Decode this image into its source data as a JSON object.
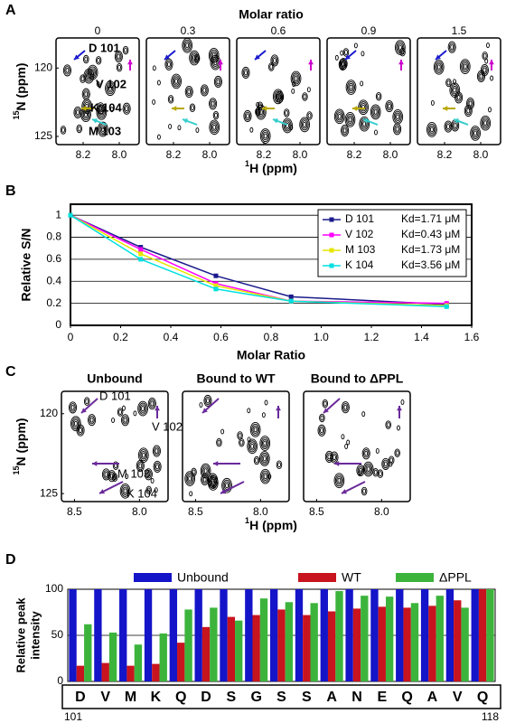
{
  "chart_data": [
    {
      "type": "spectra",
      "panel": "A",
      "title": "Molar ratio",
      "ratios": [
        0,
        0.3,
        0.6,
        0.9,
        1.5
      ],
      "xlabel_sup": "1",
      "xlabel": "H (ppm)",
      "ylabel_sup": "15",
      "ylabel": "N (ppm)",
      "xlim": [
        8.35,
        7.89
      ],
      "ylim": [
        117.8,
        125.6
      ],
      "xticks": [
        8.2,
        {
          "value": 8,
          "label": "8.0"
        }
      ],
      "yticks": [
        120,
        125
      ],
      "residues": [
        {
          "name": "D 101",
          "color": "#1a1acd"
        },
        {
          "name": "V 102",
          "color": "#cc00cc"
        },
        {
          "name": "K 104",
          "color": "#b8a800"
        },
        {
          "name": "M 103",
          "color": "#33cccc"
        }
      ]
    },
    {
      "type": "line",
      "panel": "B",
      "xlabel": "Molar Ratio",
      "ylabel": "Relative S/N",
      "x": [
        0,
        0.28,
        0.58,
        0.88,
        1.5
      ],
      "xlim": [
        0,
        1.6
      ],
      "xticks": [
        0,
        0.2,
        0.4,
        0.6,
        0.8,
        {
          "value": 1,
          "label": "1.0"
        },
        1.2,
        1.4,
        1.6
      ],
      "ylim": [
        0,
        1.1
      ],
      "yticks": [
        0,
        0.2,
        0.4,
        0.6,
        0.8,
        1
      ],
      "grid": true,
      "legend": "upper right",
      "series": [
        {
          "name": "D 101",
          "label": "Kd=1.71 μM",
          "color": "#1a1a8c",
          "values": [
            1.0,
            0.71,
            0.45,
            0.26,
            0.19
          ]
        },
        {
          "name": "V 102",
          "label": "Kd=0.43 μM",
          "color": "#ff00ff",
          "values": [
            1.0,
            0.69,
            0.38,
            0.22,
            0.2
          ]
        },
        {
          "name": "M 103",
          "label": "Kd=1.73 μM",
          "color": "#e6e600",
          "values": [
            1.0,
            0.65,
            0.36,
            0.22,
            0.18
          ]
        },
        {
          "name": "K 104",
          "label": "Kd=3.56 μM",
          "color": "#00e0e0",
          "values": [
            1.0,
            0.6,
            0.33,
            0.22,
            0.17
          ]
        }
      ]
    },
    {
      "type": "spectra",
      "panel": "C",
      "titles": [
        {
          "text": "Unbound",
          "color": "#1a1acd"
        },
        {
          "text": "Bound to WT",
          "color": "#e02020"
        },
        {
          "text": "Bound to ΔPPL",
          "color": "#33b033"
        }
      ],
      "xlabel_sup": "1",
      "xlabel": "H (ppm)",
      "ylabel_sup": "15",
      "ylabel": "N (ppm)",
      "xlim": [
        8.6,
        7.78
      ],
      "ylim": [
        118.6,
        125.5
      ],
      "xticks": [
        8.5,
        {
          "value": 8,
          "label": "8.0"
        }
      ],
      "yticks": [
        120,
        125
      ],
      "residues": [
        {
          "name": "D 101",
          "color": "#6a2a9a"
        },
        {
          "name": "V 102",
          "color": "#6a2a9a"
        },
        {
          "name": "M 103",
          "color": "#6a2a9a"
        },
        {
          "name": "K 104",
          "color": "#6a2a9a"
        }
      ]
    },
    {
      "type": "bar",
      "panel": "D",
      "ylabel": [
        "Relative peak",
        "intensity"
      ],
      "categories": [
        "D",
        "V",
        "M",
        "K",
        "Q",
        "D",
        "S",
        "G",
        "S",
        "S",
        "A",
        "N",
        "E",
        "Q",
        "A",
        "V",
        "Q"
      ],
      "highlighted": [
        0,
        1,
        2,
        3
      ],
      "highlight_color": "#6a2a9a",
      "first_residue": 101,
      "last_residue": 118,
      "ylim": [
        0,
        100
      ],
      "yticks": [
        0,
        50,
        100
      ],
      "grid": true,
      "series": [
        {
          "name": "Unbound",
          "color": "#1414c8",
          "values": [
            100,
            100,
            100,
            100,
            100,
            100,
            100,
            100,
            100,
            100,
            100,
            100,
            100,
            100,
            100,
            100,
            100
          ]
        },
        {
          "name": "WT",
          "color": "#c8141e",
          "values": [
            17,
            20,
            17,
            19,
            42,
            59,
            70,
            72,
            78,
            72,
            76,
            79,
            81,
            80,
            82,
            88,
            100
          ]
        },
        {
          "name": "ΔPPL",
          "color": "#3cb43c",
          "values": [
            62,
            53,
            40,
            52,
            78,
            80,
            66,
            90,
            86,
            85,
            98,
            93,
            92,
            85,
            93,
            80,
            100
          ]
        }
      ]
    }
  ]
}
